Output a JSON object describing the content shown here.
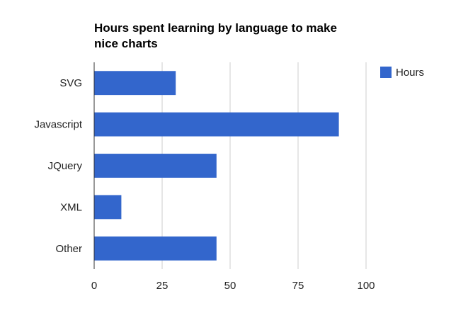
{
  "chart_data": {
    "type": "bar",
    "orientation": "horizontal",
    "title_lines": [
      "Hours spent learning by language to make",
      "nice charts"
    ],
    "categories": [
      "SVG",
      "Javascript",
      "JQuery",
      "XML",
      "Other"
    ],
    "series": [
      {
        "name": "Hours",
        "values": [
          30,
          90,
          45,
          10,
          45
        ]
      }
    ],
    "xlim": [
      0,
      100
    ],
    "x_ticks": [
      0,
      25,
      50,
      75,
      100
    ],
    "grid": true,
    "legend_position": "right",
    "colors": {
      "bar": "#3366cc",
      "grid": "#cccccc",
      "axis": "#333333"
    }
  }
}
